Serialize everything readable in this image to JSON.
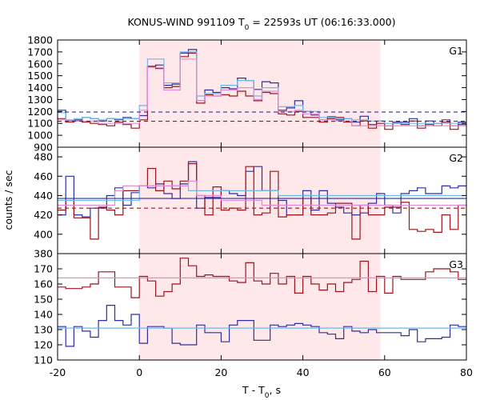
{
  "chart_data": {
    "type": "line",
    "title": "KONUS-WIND 991109 T",
    "title_sub": "0",
    "title_rest": " = 22593s UT (06:16:33.000)",
    "xlabel": "T - T",
    "xlabel_sub": "0",
    "xlabel_rest": ", s",
    "ylabel": "counts / sec",
    "xlim": [
      -20,
      80
    ],
    "x_ticks": [
      "-20",
      "0",
      "20",
      "40",
      "60",
      "80"
    ],
    "highlight": {
      "from": 0,
      "to": 59,
      "color": "#ffe8ea"
    },
    "step_x": [
      -20,
      -18,
      -16,
      -14,
      -12,
      -10,
      -8,
      -6,
      -4,
      -2,
      0,
      2,
      4,
      6,
      8,
      10,
      12,
      14,
      16,
      18,
      20,
      22,
      24,
      26,
      28,
      30,
      32,
      34,
      36,
      38,
      40,
      42,
      44,
      46,
      48,
      50,
      52,
      54,
      56,
      58,
      60,
      62,
      64,
      66,
      68,
      70,
      72,
      74,
      76,
      78,
      80
    ],
    "panels": [
      {
        "name": "G1",
        "ylim": [
          900,
          1800
        ],
        "y_ticks": [
          "900",
          "1000",
          "1100",
          "1200",
          "1300",
          "1400",
          "1500",
          "1600",
          "1700",
          "1800"
        ],
        "series": [
          {
            "color": "#2e2ea0",
            "kind": "step",
            "values": [
              1210,
              1125,
              1130,
              1150,
              1140,
              1120,
              1140,
              1130,
              1150,
              1140,
              1165,
              1575,
              1590,
              1420,
              1430,
              1690,
              1720,
              1290,
              1380,
              1360,
              1400,
              1390,
              1480,
              1460,
              1385,
              1450,
              1440,
              1210,
              1230,
              1290,
              1200,
              1170,
              1130,
              1155,
              1130,
              1140,
              1110,
              1160,
              1090,
              1120,
              1080,
              1110,
              1110,
              1140,
              1080,
              1120,
              1100,
              1130,
              1080,
              1110
            ]
          },
          {
            "color": "#99141c",
            "kind": "step",
            "values": [
              1140,
              1110,
              1120,
              1110,
              1100,
              1090,
              1080,
              1110,
              1090,
              1060,
              1130,
              1580,
              1560,
              1400,
              1410,
              1660,
              1690,
              1270,
              1340,
              1330,
              1340,
              1330,
              1370,
              1330,
              1290,
              1360,
              1350,
              1180,
              1170,
              1200,
              1150,
              1150,
              1110,
              1140,
              1150,
              1110,
              1080,
              1120,
              1060,
              1100,
              1050,
              1100,
              1090,
              1120,
              1060,
              1090,
              1080,
              1110,
              1050,
              1090
            ]
          },
          {
            "color": "#6eb8ea",
            "kind": "step",
            "values": [
              1190,
              1130,
              1140,
              1150,
              1140,
              1130,
              1140,
              1140,
              1140,
              1140,
              1250,
              1640,
              1640,
              1440,
              1440,
              1700,
              1700,
              1330,
              1350,
              1350,
              1420,
              1420,
              1460,
              1460,
              1330,
              1400,
              1400,
              1240,
              1240,
              1250,
              1200,
              1200,
              1150,
              1150,
              1140,
              1140,
              1130,
              1130,
              1120,
              1120,
              1100,
              1100,
              1100,
              1100,
              1100,
              1100,
              1100,
              1100,
              1100,
              1100
            ]
          },
          {
            "color": "#e28ad6",
            "kind": "step",
            "values": [
              1130,
              1120,
              1120,
              1120,
              1120,
              1100,
              1100,
              1100,
              1100,
              1100,
              1210,
              1570,
              1570,
              1380,
              1380,
              1640,
              1640,
              1290,
              1330,
              1330,
              1380,
              1380,
              1400,
              1400,
              1300,
              1370,
              1370,
              1200,
              1200,
              1210,
              1180,
              1180,
              1130,
              1130,
              1120,
              1120,
              1080,
              1080,
              1080,
              1080,
              1080,
              1080,
              1080,
              1080,
              1080,
              1080,
              1080,
              1080,
              1080,
              1080
            ]
          },
          {
            "color": "#2e2ea0",
            "kind": "hline",
            "dashed": true,
            "value": 1195
          },
          {
            "color": "#99141c",
            "kind": "hline",
            "dashed": true,
            "value": 1118
          }
        ]
      },
      {
        "name": "G2",
        "ylim": [
          380,
          490
        ],
        "y_ticks": [
          "380",
          "400",
          "420",
          "440",
          "460",
          "480"
        ],
        "series": [
          {
            "color": "#2e2ea0",
            "kind": "step",
            "values": [
              420,
              460,
              420,
              418,
              427,
              427,
              440,
              448,
              430,
              443,
              450,
              448,
              452,
              442,
              437,
              452,
              475,
              427,
              438,
              438,
              445,
              442,
              440,
              465,
              470,
              445,
              445,
              435,
              420,
              420,
              445,
              425,
              445,
              432,
              428,
              422,
              420,
              422,
              432,
              442,
              430,
              422,
              442,
              445,
              448,
              442,
              442,
              450,
              448,
              450
            ]
          },
          {
            "color": "#99141c",
            "kind": "step",
            "values": [
              425,
              435,
              417,
              417,
              395,
              428,
              425,
              420,
              445,
              445,
              450,
              468,
              445,
              455,
              447,
              455,
              473,
              440,
              420,
              449,
              425,
              427,
              425,
              470,
              420,
              422,
              465,
              418,
              420,
              420,
              440,
              420,
              420,
              422,
              432,
              432,
              395,
              430,
              420,
              420,
              428,
              428,
              433,
              405,
              403,
              405,
              402,
              420,
              405,
              430
            ]
          },
          {
            "color": "#6eb8ea",
            "kind": "step",
            "values": [
              435,
              435,
              435,
              435,
              435,
              435,
              435,
              435,
              435,
              435,
              450,
              450,
              450,
              450,
              450,
              450,
              445,
              445,
              445,
              445,
              445,
              445,
              445,
              445,
              445,
              445,
              445,
              440,
              440,
              440,
              440,
              440,
              440,
              440,
              440,
              440,
              440,
              440,
              440,
              440,
              440,
              440,
              440,
              440,
              440,
              440,
              440,
              440,
              440,
              440
            ]
          },
          {
            "color": "#e28ad6",
            "kind": "step",
            "values": [
              430,
              430,
              430,
              430,
              430,
              430,
              430,
              445,
              450,
              450,
              450,
              450,
              450,
              450,
              450,
              450,
              455,
              440,
              440,
              440,
              435,
              435,
              435,
              435,
              435,
              430,
              430,
              430,
              430,
              430,
              430,
              430,
              430,
              430,
              430,
              430,
              430,
              430,
              430,
              430,
              430,
              430,
              430,
              430,
              430,
              430,
              430,
              430,
              430,
              430
            ]
          },
          {
            "color": "#2e2ea0",
            "kind": "hline",
            "dashed": false,
            "value": 437
          },
          {
            "color": "#99141c",
            "kind": "hline",
            "dashed": true,
            "value": 427
          }
        ]
      },
      {
        "name": "G3",
        "ylim": [
          110,
          180
        ],
        "y_ticks": [
          "110",
          "120",
          "130",
          "140",
          "150",
          "160",
          "170"
        ],
        "series": [
          {
            "color": "#99141c",
            "kind": "step",
            "values": [
              158,
              157,
              157,
              158,
              160,
              168,
              168,
              158,
              158,
              151,
              165,
              162,
              152,
              155,
              160,
              177,
              172,
              165,
              166,
              165,
              165,
              162,
              161,
              174,
              162,
              160,
              167,
              160,
              165,
              154,
              165,
              160,
              156,
              160,
              155,
              161,
              163,
              175,
              155,
              165,
              154,
              165,
              163,
              163,
              163,
              168,
              170,
              170,
              168,
              163
            ]
          },
          {
            "color": "#2e2ea0",
            "kind": "step",
            "values": [
              132,
              119,
              132,
              129,
              125,
              136,
              146,
              136,
              133,
              140,
              121,
              132,
              132,
              131,
              121,
              120,
              120,
              133,
              128,
              128,
              122,
              133,
              136,
              136,
              123,
              123,
              133,
              132,
              133,
              134,
              133,
              132,
              128,
              127,
              124,
              132,
              129,
              128,
              130,
              128,
              128,
              128,
              126,
              130,
              122,
              124,
              124,
              125,
              133,
              132
            ]
          },
          {
            "color": "#e28ad6",
            "kind": "hline",
            "dashed": false,
            "value": 164
          },
          {
            "color": "#6eb8ea",
            "kind": "hline",
            "dashed": false,
            "value": 131
          }
        ]
      }
    ]
  }
}
